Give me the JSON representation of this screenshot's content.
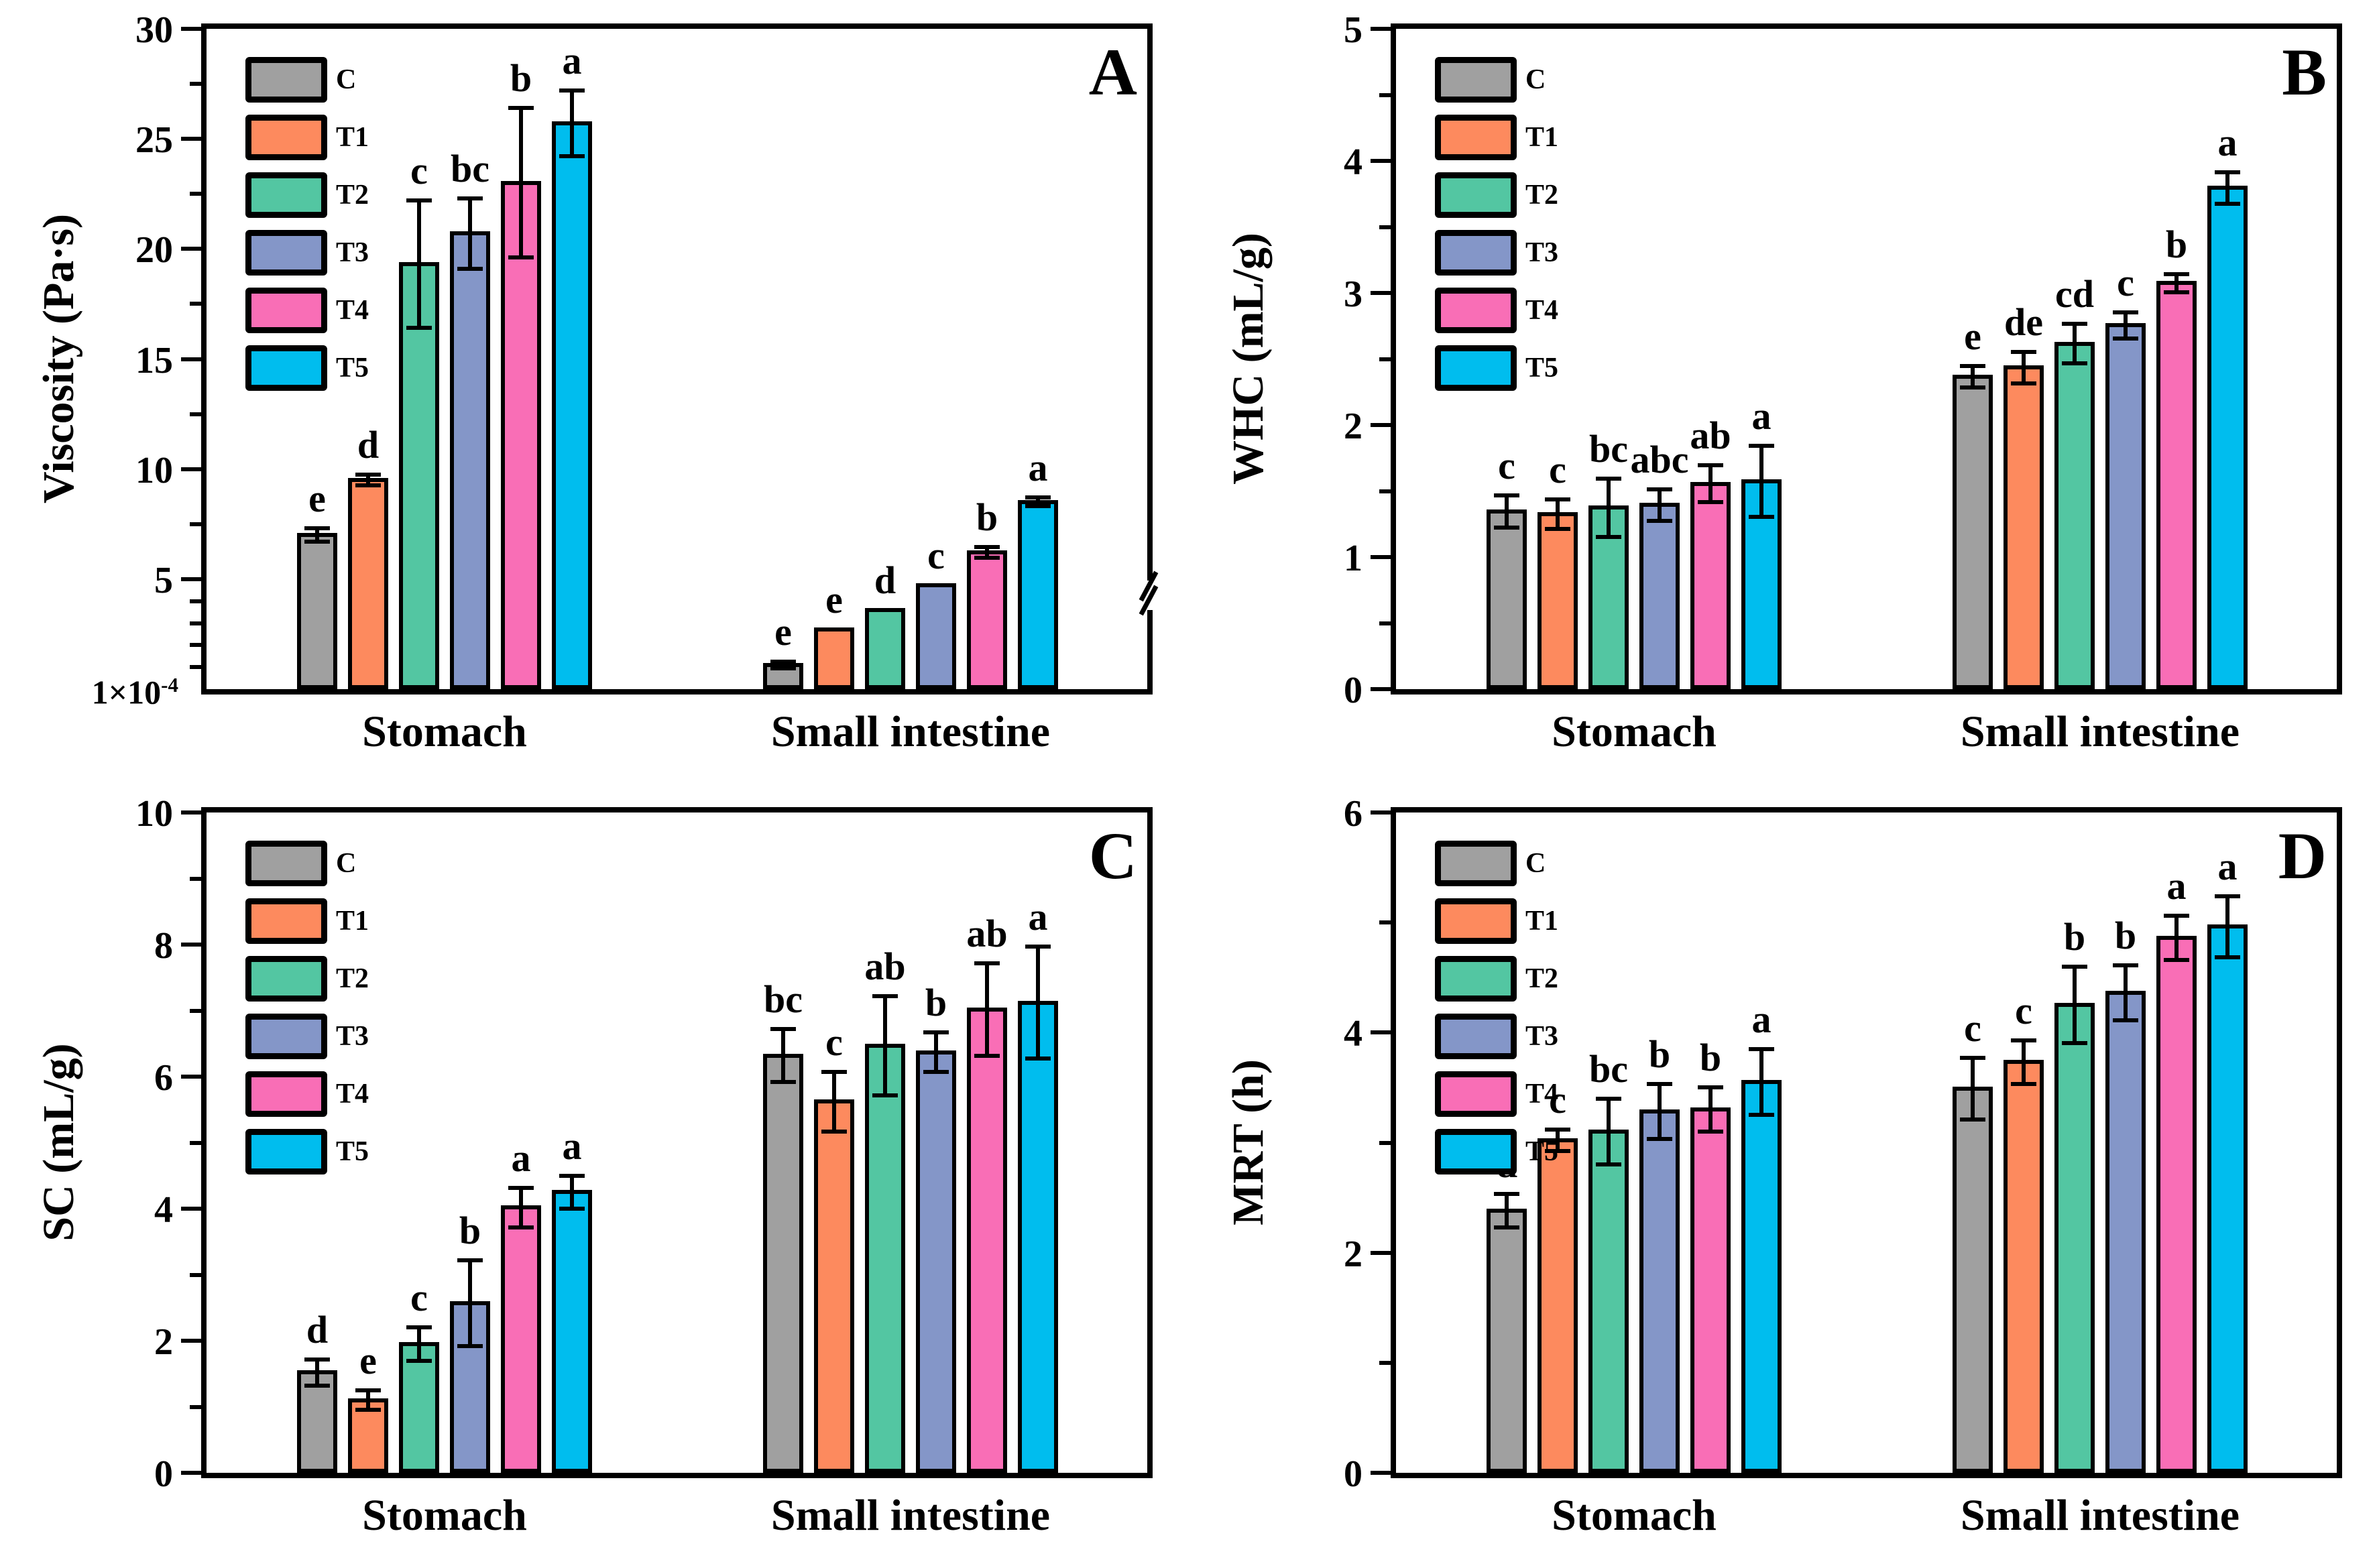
{
  "legend": {
    "entries": [
      {
        "label": "C",
        "color": "#A0A0A0"
      },
      {
        "label": "T1",
        "color": "#FD8A5E"
      },
      {
        "label": "T2",
        "color": "#53C6A2"
      },
      {
        "label": "T3",
        "color": "#8496C8"
      },
      {
        "label": "T4",
        "color": "#F96EB6"
      },
      {
        "label": "T5",
        "color": "#00BDEE"
      }
    ]
  },
  "chart_data": [
    {
      "type": "bar",
      "panel_letter": "A",
      "ylabel": "Viscosity (Pa·s)",
      "ylim": [
        0,
        30
      ],
      "yticks_major": [
        30,
        25,
        20,
        15,
        10,
        5
      ],
      "yticks_minor": [
        27.5,
        22.5,
        17.5,
        12.5,
        7.5,
        4,
        3,
        2,
        1
      ],
      "origin_label_html": "1×10<sup>-4</sup>",
      "axis_break_right": true,
      "categories": [
        "Stomach",
        "Small intestine"
      ],
      "series": [
        {
          "name": "C",
          "color": "#A0A0A0",
          "values": [
            7.1,
            1.2
          ],
          "errors": [
            0.3,
            0.15
          ],
          "letters": [
            "e",
            "e"
          ]
        },
        {
          "name": "T1",
          "color": "#FD8A5E",
          "values": [
            9.6,
            2.8
          ],
          "errors": [
            0.25,
            0
          ],
          "letters": [
            "d",
            "e"
          ]
        },
        {
          "name": "T2",
          "color": "#53C6A2",
          "values": [
            19.4,
            3.7
          ],
          "errors": [
            2.9,
            0
          ],
          "letters": [
            "c",
            "d"
          ]
        },
        {
          "name": "T3",
          "color": "#8496C8",
          "values": [
            20.8,
            4.8
          ],
          "errors": [
            1.6,
            0
          ],
          "letters": [
            "bc",
            "c"
          ]
        },
        {
          "name": "T4",
          "color": "#F96EB6",
          "values": [
            23.1,
            6.3
          ],
          "errors": [
            3.4,
            0.25
          ],
          "letters": [
            "b",
            "b"
          ]
        },
        {
          "name": "T5",
          "color": "#00BDEE",
          "values": [
            25.8,
            8.6
          ],
          "errors": [
            1.5,
            0.2
          ],
          "letters": [
            "a",
            "a"
          ]
        }
      ]
    },
    {
      "type": "bar",
      "panel_letter": "B",
      "ylabel": "WHC (mL/g)",
      "ylim": [
        0,
        5
      ],
      "yticks_major": [
        5,
        4,
        3,
        2,
        1,
        0
      ],
      "yticks_minor": [
        4.5,
        3.5,
        2.5,
        1.5,
        0.5
      ],
      "origin_label_html": "",
      "axis_break_right": false,
      "categories": [
        "Stomach",
        "Small intestine"
      ],
      "series": [
        {
          "name": "C",
          "color": "#A0A0A0",
          "values": [
            1.36,
            2.38
          ],
          "errors": [
            0.12,
            0.08
          ],
          "letters": [
            "c",
            "e"
          ]
        },
        {
          "name": "T1",
          "color": "#FD8A5E",
          "values": [
            1.34,
            2.45
          ],
          "errors": [
            0.11,
            0.12
          ],
          "letters": [
            "c",
            "de"
          ]
        },
        {
          "name": "T2",
          "color": "#53C6A2",
          "values": [
            1.39,
            2.63
          ],
          "errors": [
            0.22,
            0.15
          ],
          "letters": [
            "bc",
            "cd"
          ]
        },
        {
          "name": "T3",
          "color": "#8496C8",
          "values": [
            1.41,
            2.77
          ],
          "errors": [
            0.12,
            0.1
          ],
          "letters": [
            "abc",
            "c"
          ]
        },
        {
          "name": "T4",
          "color": "#F96EB6",
          "values": [
            1.57,
            3.09
          ],
          "errors": [
            0.14,
            0.07
          ],
          "letters": [
            "ab",
            "b"
          ]
        },
        {
          "name": "T5",
          "color": "#00BDEE",
          "values": [
            1.59,
            3.81
          ],
          "errors": [
            0.27,
            0.12
          ],
          "letters": [
            "a",
            "a"
          ]
        }
      ]
    },
    {
      "type": "bar",
      "panel_letter": "C",
      "ylabel": "SC (mL/g)",
      "ylim": [
        0,
        10
      ],
      "yticks_major": [
        10,
        8,
        6,
        4,
        2,
        0
      ],
      "yticks_minor": [
        9,
        7,
        5,
        3,
        1
      ],
      "origin_label_html": "",
      "axis_break_right": false,
      "categories": [
        "Stomach",
        "Small intestine"
      ],
      "series": [
        {
          "name": "C",
          "color": "#A0A0A0",
          "values": [
            1.55,
            6.35
          ],
          "errors": [
            0.2,
            0.4
          ],
          "letters": [
            "d",
            "bc"
          ]
        },
        {
          "name": "T1",
          "color": "#FD8A5E",
          "values": [
            1.13,
            5.65
          ],
          "errors": [
            0.15,
            0.45
          ],
          "letters": [
            "e",
            "c"
          ]
        },
        {
          "name": "T2",
          "color": "#53C6A2",
          "values": [
            1.98,
            6.5
          ],
          "errors": [
            0.25,
            0.75
          ],
          "letters": [
            "c",
            "ab"
          ]
        },
        {
          "name": "T3",
          "color": "#8496C8",
          "values": [
            2.6,
            6.4
          ],
          "errors": [
            0.65,
            0.3
          ],
          "letters": [
            "b",
            "b"
          ]
        },
        {
          "name": "T4",
          "color": "#F96EB6",
          "values": [
            4.05,
            7.05
          ],
          "errors": [
            0.3,
            0.7
          ],
          "letters": [
            "a",
            "ab"
          ]
        },
        {
          "name": "T5",
          "color": "#00BDEE",
          "values": [
            4.28,
            7.15
          ],
          "errors": [
            0.25,
            0.85
          ],
          "letters": [
            "a",
            "a"
          ]
        }
      ]
    },
    {
      "type": "bar",
      "panel_letter": "D",
      "ylabel": "MRT (h)",
      "ylim": [
        0,
        6
      ],
      "yticks_major": [
        6,
        4,
        2,
        0
      ],
      "yticks_minor": [
        5,
        3,
        1
      ],
      "origin_label_html": "",
      "axis_break_right": false,
      "categories": [
        "Stomach",
        "Small intestine"
      ],
      "series": [
        {
          "name": "C",
          "color": "#A0A0A0",
          "values": [
            2.4,
            3.51
          ],
          "errors": [
            0.15,
            0.28
          ],
          "letters": [
            "d",
            "c"
          ]
        },
        {
          "name": "T1",
          "color": "#FD8A5E",
          "values": [
            3.04,
            3.75
          ],
          "errors": [
            0.1,
            0.2
          ],
          "letters": [
            "c",
            "c"
          ]
        },
        {
          "name": "T2",
          "color": "#53C6A2",
          "values": [
            3.12,
            4.27
          ],
          "errors": [
            0.3,
            0.35
          ],
          "letters": [
            "bc",
            "b"
          ]
        },
        {
          "name": "T3",
          "color": "#8496C8",
          "values": [
            3.3,
            4.38
          ],
          "errors": [
            0.25,
            0.25
          ],
          "letters": [
            "b",
            "b"
          ]
        },
        {
          "name": "T4",
          "color": "#F96EB6",
          "values": [
            3.32,
            4.88
          ],
          "errors": [
            0.2,
            0.2
          ],
          "letters": [
            "b",
            "a"
          ]
        },
        {
          "name": "T5",
          "color": "#00BDEE",
          "values": [
            3.57,
            4.98
          ],
          "errors": [
            0.3,
            0.28
          ],
          "letters": [
            "a",
            "a"
          ]
        }
      ]
    }
  ]
}
